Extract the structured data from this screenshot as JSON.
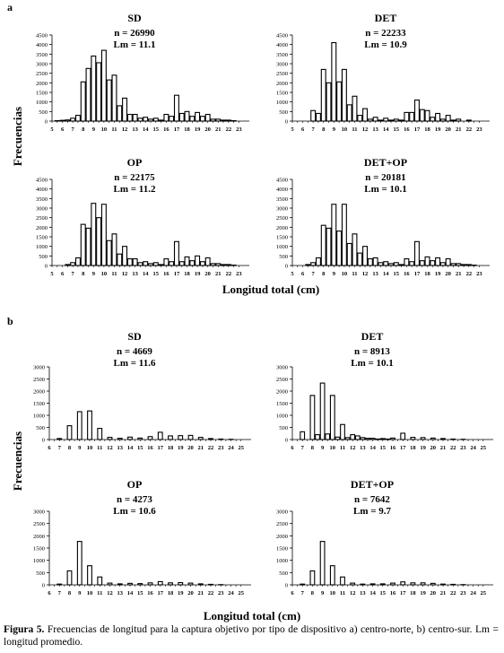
{
  "figure": {
    "caption_label": "Figura 5.",
    "caption_text": "Frecuencias de longitud para la captura objetivo por tipo de dispositivo a) centro-norte, b) centro-sur. Lm = longitud promedio."
  },
  "chart_data": [
    {
      "panel": "a",
      "type": "bar",
      "title": "SD",
      "n_label": "n = 26990",
      "lm_label": "Lm = 11.1",
      "ylabel": "Frecuencias",
      "xlabel": "Longitud total (cm)",
      "ylim": [
        0,
        4500
      ],
      "ytick_step": 500,
      "grid": false,
      "categories": [
        5,
        6,
        7,
        8,
        9,
        10,
        11,
        12,
        13,
        14,
        15,
        16,
        17,
        18,
        19,
        20,
        21,
        22,
        23
      ],
      "x": [
        5,
        5.5,
        6,
        6.5,
        7,
        7.5,
        8,
        8.5,
        9,
        9.5,
        10,
        10.5,
        11,
        11.5,
        12,
        12.5,
        13,
        13.5,
        14,
        14.5,
        15,
        15.5,
        16,
        16.5,
        17,
        17.5,
        18,
        18.5,
        19,
        19.5,
        20,
        20.5,
        21,
        21.5,
        22,
        22.5,
        23
      ],
      "values": [
        0,
        20,
        40,
        60,
        150,
        300,
        2050,
        2750,
        3400,
        3050,
        3700,
        2150,
        2400,
        800,
        1200,
        350,
        350,
        150,
        200,
        100,
        150,
        50,
        350,
        250,
        1350,
        400,
        500,
        250,
        450,
        250,
        350,
        100,
        100,
        50,
        50,
        20,
        0
      ]
    },
    {
      "panel": "a",
      "type": "bar",
      "title": "DET",
      "n_label": "n = 22233",
      "lm_label": "Lm = 10.9",
      "ylim": [
        0,
        4500
      ],
      "ytick_step": 500,
      "grid": false,
      "categories": [
        5,
        6,
        7,
        8,
        9,
        10,
        11,
        12,
        13,
        14,
        15,
        16,
        17,
        18,
        19,
        20,
        21,
        22,
        23
      ],
      "x": [
        5,
        5.5,
        6,
        6.5,
        7,
        7.5,
        8,
        8.5,
        9,
        9.5,
        10,
        10.5,
        11,
        11.5,
        12,
        12.5,
        13,
        13.5,
        14,
        14.5,
        15,
        15.5,
        16,
        16.5,
        17,
        17.5,
        18,
        18.5,
        19,
        19.5,
        20,
        20.5,
        21,
        21.5,
        22,
        22.5,
        23
      ],
      "values": [
        0,
        0,
        0,
        0,
        550,
        400,
        2700,
        2000,
        4100,
        2050,
        2700,
        850,
        1300,
        300,
        650,
        100,
        200,
        50,
        150,
        50,
        100,
        50,
        450,
        450,
        1100,
        600,
        550,
        200,
        400,
        100,
        300,
        50,
        100,
        0,
        50,
        0,
        0
      ]
    },
    {
      "panel": "a",
      "type": "bar",
      "title": "OP",
      "n_label": "n = 22175",
      "lm_label": "Lm = 11.2",
      "ylim": [
        0,
        4500
      ],
      "ytick_step": 500,
      "grid": false,
      "categories": [
        5,
        6,
        7,
        8,
        9,
        10,
        11,
        12,
        13,
        14,
        15,
        16,
        17,
        18,
        19,
        20,
        21,
        22,
        23
      ],
      "x": [
        5,
        5.5,
        6,
        6.5,
        7,
        7.5,
        8,
        8.5,
        9,
        9.5,
        10,
        10.5,
        11,
        11.5,
        12,
        12.5,
        13,
        13.5,
        14,
        14.5,
        15,
        15.5,
        16,
        16.5,
        17,
        17.5,
        18,
        18.5,
        19,
        19.5,
        20,
        20.5,
        21,
        21.5,
        22,
        22.5,
        23
      ],
      "values": [
        0,
        0,
        0,
        50,
        150,
        400,
        2150,
        1950,
        3250,
        2500,
        3200,
        1300,
        1650,
        600,
        1000,
        350,
        350,
        150,
        200,
        100,
        150,
        50,
        350,
        200,
        1250,
        200,
        450,
        250,
        500,
        200,
        400,
        100,
        100,
        50,
        50,
        20,
        0
      ]
    },
    {
      "panel": "a",
      "type": "bar",
      "title": "DET+OP",
      "n_label": "n = 20181",
      "lm_label": "Lm = 10.1",
      "ylim": [
        0,
        4500
      ],
      "ytick_step": 500,
      "grid": false,
      "categories": [
        5,
        6,
        7,
        8,
        9,
        10,
        11,
        12,
        13,
        14,
        15,
        16,
        17,
        18,
        19,
        20,
        21,
        22,
        23
      ],
      "x": [
        5,
        5.5,
        6,
        6.5,
        7,
        7.5,
        8,
        8.5,
        9,
        9.5,
        10,
        10.5,
        11,
        11.5,
        12,
        12.5,
        13,
        13.5,
        14,
        14.5,
        15,
        15.5,
        16,
        16.5,
        17,
        17.5,
        18,
        18.5,
        19,
        19.5,
        20,
        20.5,
        21,
        21.5,
        22,
        22.5,
        23
      ],
      "values": [
        0,
        0,
        0,
        50,
        150,
        400,
        2100,
        1950,
        3200,
        1800,
        3200,
        1150,
        1650,
        650,
        1000,
        350,
        400,
        150,
        200,
        100,
        150,
        50,
        350,
        200,
        1250,
        250,
        450,
        250,
        400,
        150,
        350,
        100,
        100,
        50,
        50,
        20,
        0
      ]
    },
    {
      "panel": "b",
      "type": "bar",
      "title": "SD",
      "n_label": "n = 4669",
      "lm_label": "Lm = 11.6",
      "ylabel": "Frecuencias",
      "xlabel": "Longitud total (cm)",
      "ylim": [
        0,
        3000
      ],
      "ytick_step": 500,
      "grid": false,
      "categories": [
        6,
        7,
        8,
        9,
        10,
        11,
        12,
        13,
        14,
        15,
        16,
        17,
        18,
        19,
        20,
        21,
        22,
        23,
        24,
        25
      ],
      "x": [
        6,
        6.5,
        7,
        7.5,
        8,
        8.5,
        9,
        9.5,
        10,
        10.5,
        11,
        11.5,
        12,
        12.5,
        13,
        13.5,
        14,
        14.5,
        15,
        15.5,
        16,
        16.5,
        17,
        17.5,
        18,
        18.5,
        19,
        19.5,
        20,
        20.5,
        21,
        21.5,
        22,
        22.5,
        23,
        23.5,
        24,
        24.5,
        25
      ],
      "values": [
        0,
        0,
        40,
        0,
        570,
        0,
        1150,
        0,
        1180,
        0,
        460,
        0,
        90,
        0,
        50,
        0,
        100,
        0,
        60,
        0,
        120,
        0,
        300,
        0,
        150,
        0,
        160,
        0,
        170,
        0,
        90,
        0,
        40,
        0,
        20,
        0,
        10,
        0,
        0
      ]
    },
    {
      "panel": "b",
      "type": "bar",
      "title": "DET",
      "n_label": "n = 8913",
      "lm_label": "Lm = 10.1",
      "ylim": [
        0,
        3000
      ],
      "ytick_step": 500,
      "grid": false,
      "categories": [
        6,
        7,
        8,
        9,
        10,
        11,
        12,
        13,
        14,
        15,
        16,
        17,
        18,
        19,
        20,
        21,
        22,
        23,
        24,
        25
      ],
      "x": [
        6,
        6.5,
        7,
        7.5,
        8,
        8.5,
        9,
        9.5,
        10,
        10.5,
        11,
        11.5,
        12,
        12.5,
        13,
        13.5,
        14,
        14.5,
        15,
        15.5,
        16,
        16.5,
        17,
        17.5,
        18,
        18.5,
        19,
        19.5,
        20,
        20.5,
        21,
        21.5,
        22,
        22.5,
        23,
        23.5,
        24,
        24.5,
        25
      ],
      "values": [
        0,
        0,
        320,
        0,
        1820,
        200,
        2330,
        230,
        1820,
        100,
        620,
        80,
        200,
        150,
        80,
        50,
        50,
        20,
        40,
        20,
        60,
        0,
        260,
        0,
        90,
        0,
        80,
        0,
        60,
        0,
        40,
        0,
        20,
        0,
        10,
        0,
        0,
        0,
        0
      ]
    },
    {
      "panel": "b",
      "type": "bar",
      "title": "OP",
      "n_label": "n = 4273",
      "lm_label": "Lm = 10.6",
      "ylim": [
        0,
        3000
      ],
      "ytick_step": 500,
      "grid": false,
      "categories": [
        6,
        7,
        8,
        9,
        10,
        11,
        12,
        13,
        14,
        15,
        16,
        17,
        18,
        19,
        20,
        21,
        22,
        23,
        24,
        25
      ],
      "x": [
        6,
        6.5,
        7,
        7.5,
        8,
        8.5,
        9,
        9.5,
        10,
        10.5,
        11,
        11.5,
        12,
        12.5,
        13,
        13.5,
        14,
        14.5,
        15,
        15.5,
        16,
        16.5,
        17,
        17.5,
        18,
        18.5,
        19,
        19.5,
        20,
        20.5,
        21,
        21.5,
        22,
        22.5,
        23,
        23.5,
        24,
        24.5,
        25
      ],
      "values": [
        0,
        0,
        30,
        0,
        570,
        0,
        1770,
        0,
        780,
        0,
        320,
        0,
        70,
        0,
        40,
        0,
        60,
        0,
        50,
        0,
        80,
        0,
        130,
        0,
        80,
        0,
        90,
        0,
        70,
        0,
        40,
        0,
        20,
        0,
        10,
        0,
        0,
        0,
        0
      ]
    },
    {
      "panel": "b",
      "type": "bar",
      "title": "DET+OP",
      "n_label": "n = 7642",
      "lm_label": "Lm = 9.7",
      "ylim": [
        0,
        3000
      ],
      "ytick_step": 500,
      "grid": false,
      "categories": [
        6,
        7,
        8,
        9,
        10,
        11,
        12,
        13,
        14,
        15,
        16,
        17,
        18,
        19,
        20,
        21,
        22,
        23,
        24,
        25
      ],
      "x": [
        6,
        6.5,
        7,
        7.5,
        8,
        8.5,
        9,
        9.5,
        10,
        10.5,
        11,
        11.5,
        12,
        12.5,
        13,
        13.5,
        14,
        14.5,
        15,
        15.5,
        16,
        16.5,
        17,
        17.5,
        18,
        18.5,
        19,
        19.5,
        20,
        20.5,
        21,
        21.5,
        22,
        22.5,
        23,
        23.5,
        24,
        24.5,
        25
      ],
      "values": [
        0,
        0,
        30,
        0,
        570,
        0,
        1770,
        0,
        780,
        0,
        320,
        0,
        70,
        0,
        30,
        0,
        40,
        0,
        40,
        0,
        70,
        0,
        120,
        0,
        80,
        0,
        80,
        0,
        60,
        0,
        30,
        0,
        20,
        0,
        10,
        0,
        0,
        0,
        0
      ]
    }
  ]
}
